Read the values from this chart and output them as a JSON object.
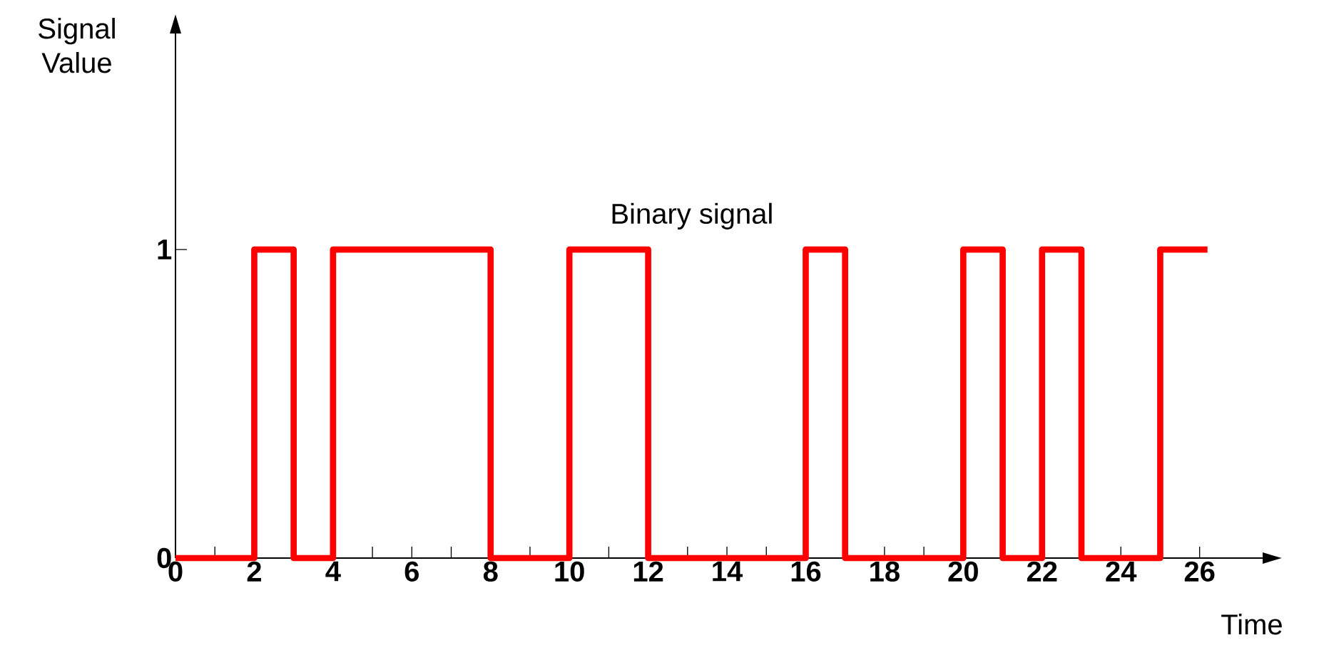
{
  "chart_data": {
    "type": "step",
    "xlabel": "Time",
    "ylabel": "Signal Value",
    "x": [
      0,
      2,
      3,
      4,
      8,
      10,
      12,
      16,
      17,
      20,
      21,
      22,
      23,
      25,
      26.2
    ],
    "series": [
      {
        "name": "Binary signal",
        "color": "#ff0000",
        "values": [
          0,
          1,
          0,
          1,
          0,
          1,
          0,
          1,
          0,
          1,
          0,
          1,
          0,
          1,
          1
        ]
      }
    ],
    "xlim": [
      0,
      27.6
    ],
    "ylim": [
      0,
      1.7
    ],
    "xticks": [
      0,
      {
        "value": 1,
        "label": null
      },
      2,
      {
        "value": 3,
        "label": null
      },
      4,
      {
        "value": 5,
        "label": null
      },
      6,
      {
        "value": 7,
        "label": null
      },
      8,
      {
        "value": 9,
        "label": null
      },
      10,
      {
        "value": 11,
        "label": null
      },
      12,
      {
        "value": 13,
        "label": null
      },
      14,
      {
        "value": 15,
        "label": null
      },
      16,
      {
        "value": 17,
        "label": null
      },
      18,
      {
        "value": 19,
        "label": null
      },
      20,
      {
        "value": 21,
        "label": null
      },
      22,
      {
        "value": 23,
        "label": null
      },
      24,
      {
        "value": 25,
        "label": null
      },
      26
    ],
    "yticks": [
      0,
      1
    ],
    "line_style": "solid",
    "marker": "none"
  }
}
